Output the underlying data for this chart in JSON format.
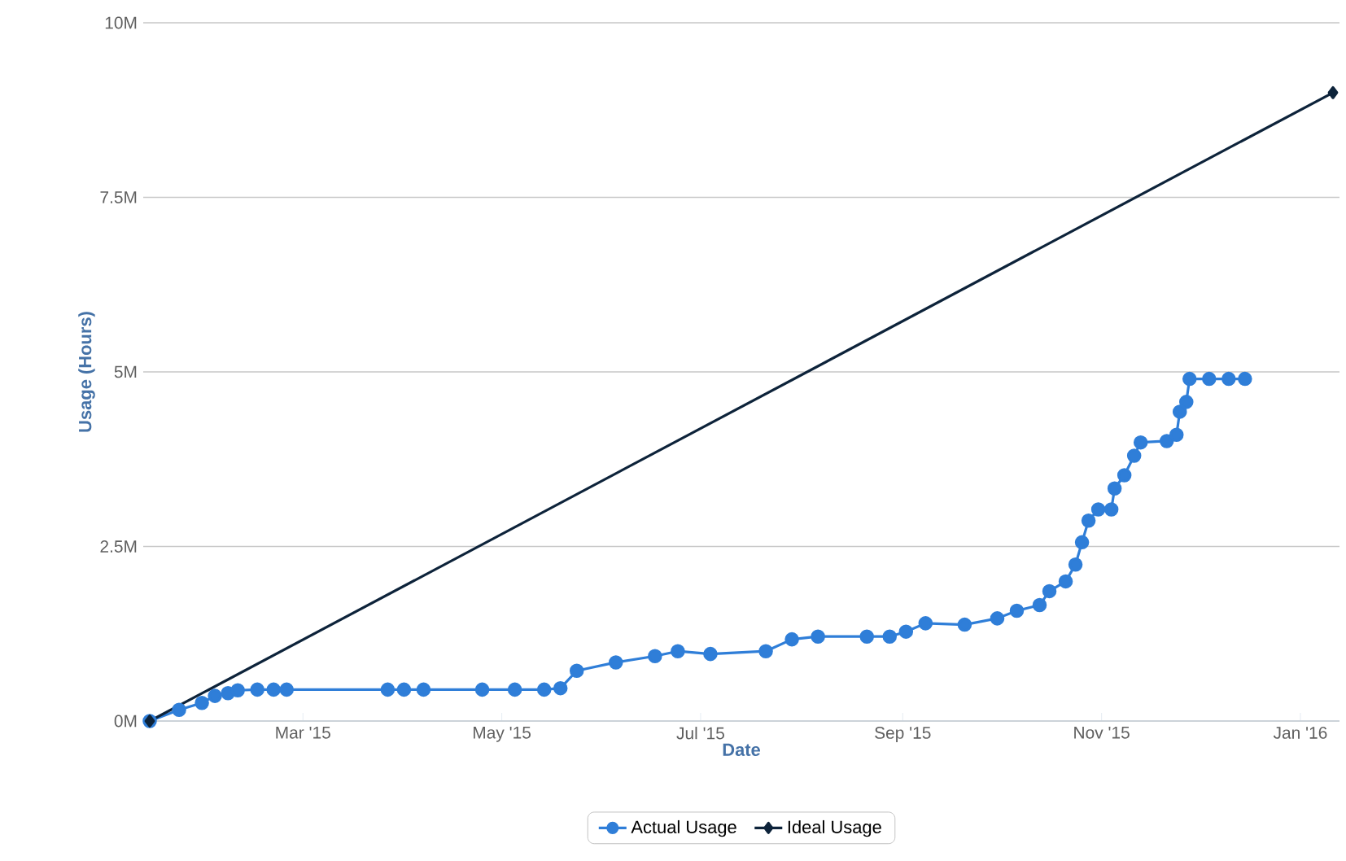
{
  "chart_data": {
    "type": "line",
    "xlabel": "Date",
    "ylabel": "Usage (Hours)",
    "x": [
      "2015-01-13",
      "2015-01-22",
      "2015-01-29",
      "2015-02-02",
      "2015-02-06",
      "2015-02-09",
      "2015-02-15",
      "2015-02-20",
      "2015-02-24",
      "2015-03-27",
      "2015-04-01",
      "2015-04-07",
      "2015-04-25",
      "2015-05-05",
      "2015-05-14",
      "2015-05-19",
      "2015-05-24",
      "2015-06-05",
      "2015-06-17",
      "2015-06-24",
      "2015-07-04",
      "2015-07-21",
      "2015-07-29",
      "2015-08-06",
      "2015-08-21",
      "2015-08-28",
      "2015-09-02",
      "2015-09-08",
      "2015-09-20",
      "2015-09-30",
      "2015-10-06",
      "2015-10-13",
      "2015-10-16",
      "2015-10-21",
      "2015-10-24",
      "2015-10-26",
      "2015-10-28",
      "2015-10-31",
      "2015-11-04",
      "2015-11-05",
      "2015-11-08",
      "2015-11-11",
      "2015-11-13",
      "2015-11-21",
      "2015-11-24",
      "2015-11-25",
      "2015-11-27",
      "2015-11-28",
      "2015-12-04",
      "2015-12-10",
      "2015-12-15"
    ],
    "series": [
      {
        "name": "Actual Usage",
        "color": "#2f7ed8",
        "marker": "circle",
        "values": [
          0,
          0.16,
          0.26,
          0.36,
          0.4,
          0.44,
          0.45,
          0.45,
          0.45,
          0.45,
          0.45,
          0.45,
          0.45,
          0.45,
          0.45,
          0.47,
          0.72,
          0.84,
          0.93,
          1.0,
          0.96,
          1.0,
          1.17,
          1.21,
          1.21,
          1.21,
          1.28,
          1.4,
          1.38,
          1.47,
          1.58,
          1.66,
          1.86,
          2.0,
          2.24,
          2.56,
          2.87,
          3.03,
          3.03,
          3.33,
          3.52,
          3.8,
          3.99,
          4.01,
          4.1,
          4.43,
          4.57,
          4.9,
          4.9,
          4.9,
          4.9
        ]
      },
      {
        "name": "Ideal Usage",
        "color": "#0d233a",
        "marker": "diamond",
        "x": [
          "2015-01-13",
          "2016-01-11"
        ],
        "values": [
          0,
          9.0
        ]
      }
    ],
    "xlim": [
      "2015-01-11",
      "2016-01-13"
    ],
    "xticks": [
      {
        "value": "2015-03-01",
        "label": "Mar '15"
      },
      {
        "value": "2015-05-01",
        "label": "May '15"
      },
      {
        "value": "2015-07-01",
        "label": "Jul '15"
      },
      {
        "value": "2015-09-01",
        "label": "Sep '15"
      },
      {
        "value": "2015-11-01",
        "label": "Nov '15"
      },
      {
        "value": "2016-01-01",
        "label": "Jan '16"
      }
    ],
    "ylim": [
      0,
      10
    ],
    "yticks": [
      {
        "value": 0,
        "label": "0M"
      },
      {
        "value": 2.5,
        "label": "2.5M"
      },
      {
        "value": 5,
        "label": "5M"
      },
      {
        "value": 7.5,
        "label": "7.5M"
      },
      {
        "value": 10,
        "label": "10M"
      }
    ],
    "grid": "y",
    "legend": "bottom"
  }
}
